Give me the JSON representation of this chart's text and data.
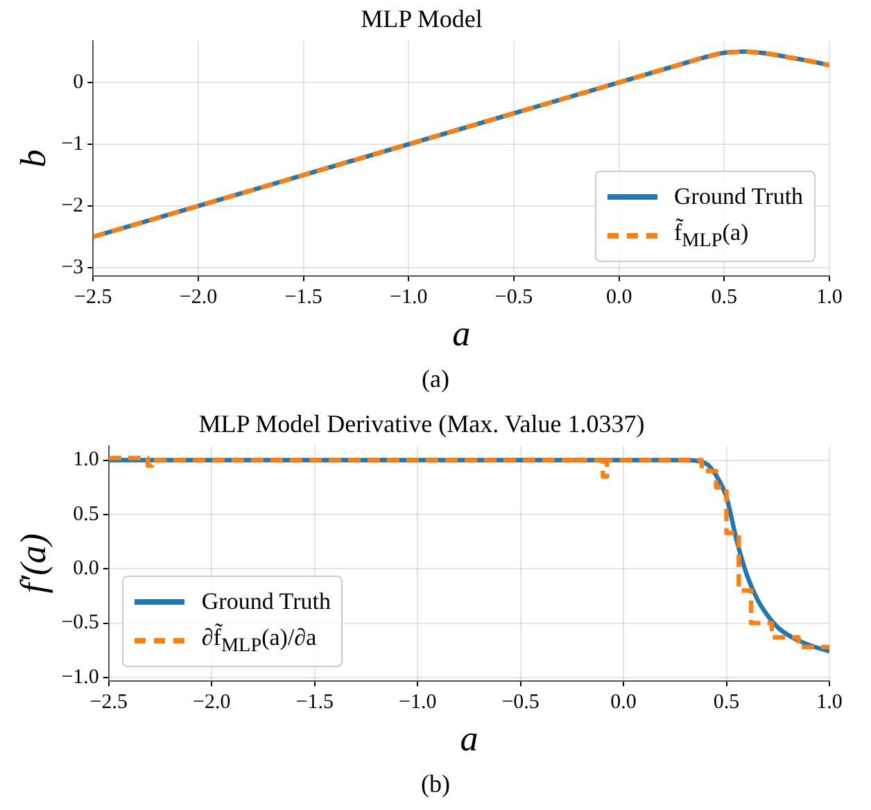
{
  "chart_data": [
    {
      "type": "line",
      "title": "MLP Model",
      "xlabel": "a",
      "ylabel": "b",
      "xlim": [
        -2.5,
        1.0
      ],
      "ylim": [
        -3.13,
        0.67
      ],
      "xticks": [
        {
          "value": -2.5,
          "label": "−2.5"
        },
        {
          "value": -2.0,
          "label": "−2.0"
        },
        {
          "value": -1.5,
          "label": "−1.5"
        },
        {
          "value": -1.0,
          "label": "−1.0"
        },
        {
          "value": -0.5,
          "label": "−0.5"
        },
        {
          "value": 0,
          "label": "0.0"
        },
        {
          "value": 0.5,
          "label": "0.5"
        },
        {
          "value": 1.0,
          "label": "1.0"
        }
      ],
      "yticks": [
        {
          "value": -3,
          "label": "−3"
        },
        {
          "value": -2,
          "label": "−2"
        },
        {
          "value": -1,
          "label": "−1"
        },
        0
      ],
      "grid": true,
      "legend": "bottom right",
      "annotations": [
        "(a)"
      ],
      "series": [
        {
          "name": "Ground Truth",
          "color": "#1f77b4",
          "line_style": "solid",
          "x": [
            -2.5,
            0.3,
            0.4,
            0.5,
            0.6,
            0.7,
            0.8,
            0.9,
            1.0
          ],
          "values": [
            -2.5,
            0.3,
            0.4,
            0.48,
            0.5,
            0.47,
            0.41,
            0.35,
            0.28
          ]
        },
        {
          "name": "f̃$_{MLP}$(a)",
          "color": "#ff7f0e",
          "line_style": "dashed",
          "x": [
            -2.5,
            0.3,
            0.4,
            0.5,
            0.6,
            0.7,
            0.8,
            0.9,
            1.0
          ],
          "values": [
            -2.5,
            0.3,
            0.4,
            0.48,
            0.5,
            0.47,
            0.41,
            0.35,
            0.28
          ]
        }
      ]
    },
    {
      "type": "line",
      "title": "MLP Model Derivative (Max. Value 1.0337)",
      "xlabel": "a",
      "ylabel": "f′(a)",
      "xlim": [
        -2.5,
        1.0
      ],
      "ylim": [
        -1.03,
        1.13
      ],
      "xticks": [
        {
          "value": -2.5,
          "label": "−2.5"
        },
        {
          "value": -2.0,
          "label": "−2.0"
        },
        {
          "value": -1.5,
          "label": "−1.5"
        },
        {
          "value": -1.0,
          "label": "−1.0"
        },
        {
          "value": -0.5,
          "label": "−0.5"
        },
        {
          "value": 0,
          "label": "0.0"
        },
        {
          "value": 0.5,
          "label": "0.5"
        },
        {
          "value": 1.0,
          "label": "1.0"
        }
      ],
      "yticks": [
        {
          "value": -1.0,
          "label": "−1.0"
        },
        {
          "value": -0.5,
          "label": "−0.5"
        },
        {
          "value": 0,
          "label": "0.0"
        },
        0.5,
        {
          "value": 1.0,
          "label": "1.0"
        }
      ],
      "grid": true,
      "legend": "bottom left",
      "annotations": [
        "(b)"
      ],
      "series": [
        {
          "name": "Ground Truth",
          "color": "#1f77b4",
          "line_style": "solid",
          "x": [
            -2.5,
            0.3,
            0.4,
            0.45,
            0.5,
            0.55,
            0.6,
            0.65,
            0.7,
            0.75,
            0.8,
            0.85,
            0.9,
            1.0
          ],
          "values": [
            1,
            1,
            0.97,
            0.86,
            0.66,
            0.26,
            -0.06,
            -0.28,
            -0.43,
            -0.54,
            -0.61,
            -0.66,
            -0.7,
            -0.76
          ]
        },
        {
          "name": "∂f̃$_{MLP}$(a)/∂a",
          "color": "#ff7f0e",
          "line_style": "dashed",
          "x": [
            -2.5,
            -2.31,
            -2.31,
            -2.29,
            -2.29,
            -0.25,
            -0.25,
            -0.23,
            -0.23,
            -0.1,
            -0.1,
            -0.08,
            -0.08,
            0.38,
            0.38,
            0.45,
            0.45,
            0.5,
            0.5,
            0.56,
            0.56,
            0.62,
            0.62,
            0.72,
            0.72,
            0.85,
            0.85,
            1.0
          ],
          "values": [
            1.02,
            1.02,
            0.95,
            0.95,
            1.0,
            1.0,
            1.03,
            1.03,
            1.0,
            1.0,
            0.85,
            0.85,
            1.0,
            1.0,
            0.9,
            0.9,
            0.75,
            0.75,
            0.33,
            0.33,
            -0.2,
            -0.2,
            -0.5,
            -0.5,
            -0.63,
            -0.63,
            -0.72,
            -0.72
          ]
        }
      ]
    }
  ]
}
